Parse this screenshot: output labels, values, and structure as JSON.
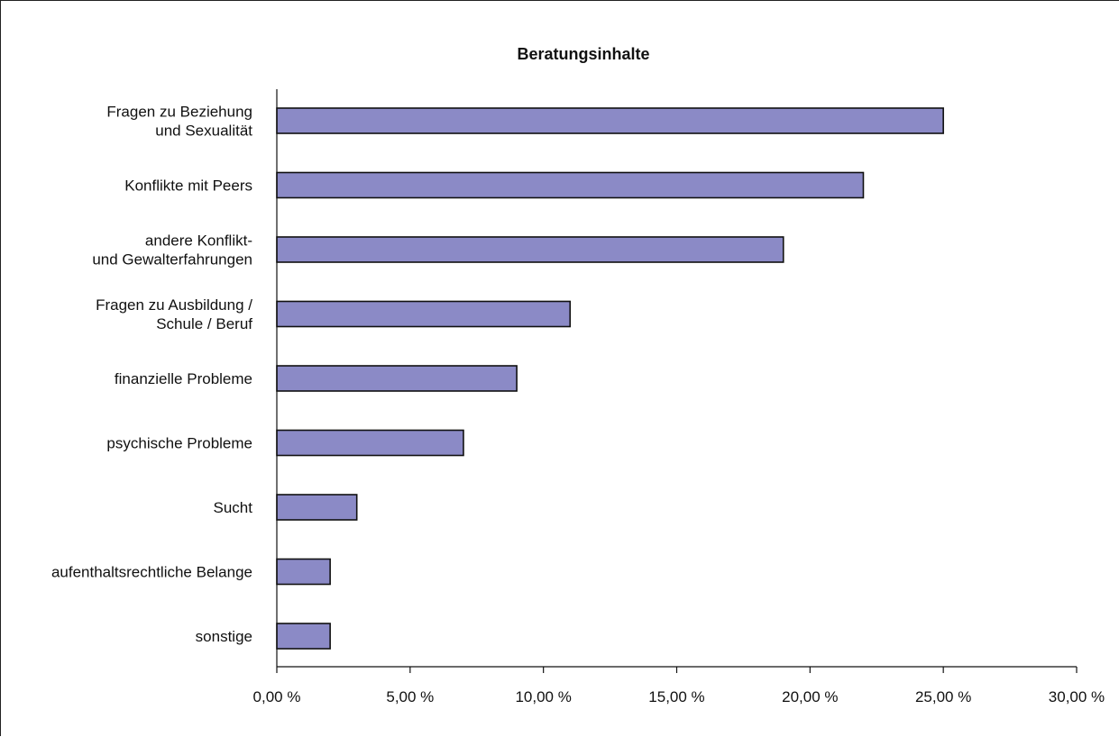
{
  "chart_data": {
    "type": "bar",
    "orientation": "horizontal",
    "title": "Beratungsinhalte",
    "categories": [
      [
        "Fragen zu Beziehung",
        "und Sexualität"
      ],
      [
        "Konflikte mit Peers"
      ],
      [
        "andere Konflikt-",
        "und Gewalterfahrungen"
      ],
      [
        "Fragen zu Ausbildung /",
        "Schule / Beruf"
      ],
      [
        "finanzielle Probleme"
      ],
      [
        "psychische Probleme"
      ],
      [
        "Sucht"
      ],
      [
        "aufenthaltsrechtliche Belange"
      ],
      [
        "sonstige"
      ]
    ],
    "values": [
      25,
      22,
      19,
      11,
      9,
      7,
      3,
      2,
      2
    ],
    "xlim": [
      0,
      30
    ],
    "xticks": [
      0,
      5,
      10,
      15,
      20,
      25,
      30
    ],
    "xtick_labels": [
      "0,00 %",
      "5,00 %",
      "10,00 %",
      "15,00 %",
      "20,00 %",
      "25,00 %",
      "30,00 %"
    ],
    "xlabel": "",
    "ylabel": "",
    "grid": false,
    "legend": "none",
    "colors": {
      "bar_fill": "#8b8ac6",
      "bar_stroke": "#111111",
      "axis": "#111111",
      "text": "#111111"
    }
  }
}
